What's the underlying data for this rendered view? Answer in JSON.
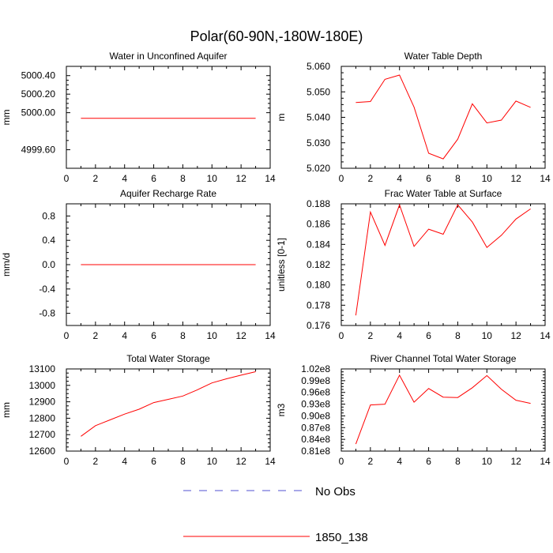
{
  "page_title": "Polar(60-90N,-180W-180E)",
  "colors": {
    "model_line": "#ff0000",
    "obs_line": "#5050d0",
    "axis": "#000000"
  },
  "legend": [
    {
      "label": "No Obs",
      "style": "dashed",
      "color": "#5050d0"
    },
    {
      "label": "1850_138",
      "style": "solid",
      "color": "#ff0000"
    }
  ],
  "chart_data": [
    {
      "type": "line",
      "title": "Water in Unconfined Aquifer",
      "xlabel": "",
      "ylabel": "mm",
      "xlim": [
        0,
        14
      ],
      "ylim": [
        4999.4,
        5000.5
      ],
      "xticks": [
        0,
        2,
        4,
        6,
        8,
        10,
        12,
        14
      ],
      "yticks": [
        4999.6,
        5000.0,
        5000.2,
        5000.4
      ],
      "ytick_labels": [
        "4999.60",
        "5000.00",
        "5000.20",
        "5000.40"
      ],
      "series": [
        {
          "name": "1850_138",
          "x": [
            1,
            2,
            3,
            4,
            5,
            6,
            7,
            8,
            9,
            10,
            11,
            12,
            13
          ],
          "values": [
            4999.94,
            4999.94,
            4999.94,
            4999.94,
            4999.94,
            4999.94,
            4999.94,
            4999.94,
            4999.94,
            4999.94,
            4999.94,
            4999.94,
            4999.94
          ]
        }
      ]
    },
    {
      "type": "line",
      "title": "Water Table Depth",
      "xlabel": "",
      "ylabel": "m",
      "xlim": [
        0,
        14
      ],
      "ylim": [
        5.02,
        5.06
      ],
      "xticks": [
        0,
        2,
        4,
        6,
        8,
        10,
        12,
        14
      ],
      "yticks": [
        5.02,
        5.03,
        5.04,
        5.05,
        5.06
      ],
      "ytick_labels": [
        "5.020",
        "5.030",
        "5.040",
        "5.050",
        "5.060"
      ],
      "series": [
        {
          "name": "1850_138",
          "x": [
            1,
            2,
            3,
            4,
            5,
            6,
            7,
            8,
            9,
            10,
            11,
            12,
            13
          ],
          "values": [
            5.0458,
            5.0462,
            5.0549,
            5.0566,
            5.044,
            5.0259,
            5.0237,
            5.0314,
            5.0453,
            5.0378,
            5.0389,
            5.0464,
            5.0439
          ]
        }
      ]
    },
    {
      "type": "line",
      "title": "Aquifer Recharge Rate",
      "xlabel": "",
      "ylabel": "mm/d",
      "xlim": [
        0,
        14
      ],
      "ylim": [
        -1.0,
        1.0
      ],
      "xticks": [
        0,
        2,
        4,
        6,
        8,
        10,
        12,
        14
      ],
      "yticks": [
        -0.8,
        -0.4,
        0.0,
        0.4,
        0.8
      ],
      "ytick_labels": [
        "-0.8",
        "-0.4",
        "0.0",
        "0.4",
        "0.8"
      ],
      "series": [
        {
          "name": "1850_138",
          "x": [
            1,
            2,
            3,
            4,
            5,
            6,
            7,
            8,
            9,
            10,
            11,
            12,
            13
          ],
          "values": [
            0,
            0,
            0,
            0,
            0,
            0,
            0,
            0,
            0,
            0,
            0,
            0,
            0
          ]
        }
      ]
    },
    {
      "type": "line",
      "title": "Frac Water Table at Surface",
      "xlabel": "",
      "ylabel": "unitless [0-1]",
      "xlim": [
        0,
        14
      ],
      "ylim": [
        0.176,
        0.188
      ],
      "xticks": [
        0,
        2,
        4,
        6,
        8,
        10,
        12,
        14
      ],
      "yticks": [
        0.176,
        0.178,
        0.18,
        0.182,
        0.184,
        0.186,
        0.188
      ],
      "ytick_labels": [
        "0.176",
        "0.178",
        "0.180",
        "0.182",
        "0.184",
        "0.186",
        "0.188"
      ],
      "series": [
        {
          "name": "1850_138",
          "x": [
            1,
            2,
            3,
            4,
            5,
            6,
            7,
            8,
            9,
            10,
            11,
            12,
            13
          ],
          "values": [
            0.177,
            0.1872,
            0.1839,
            0.1879,
            0.1838,
            0.1855,
            0.185,
            0.1879,
            0.1862,
            0.1837,
            0.1849,
            0.1865,
            0.1875
          ]
        }
      ]
    },
    {
      "type": "line",
      "title": "Total Water Storage",
      "xlabel": "",
      "ylabel": "mm",
      "xlim": [
        0,
        14
      ],
      "ylim": [
        12600,
        13100
      ],
      "xticks": [
        0,
        2,
        4,
        6,
        8,
        10,
        12,
        14
      ],
      "yticks": [
        12600,
        12700,
        12800,
        12900,
        13000,
        13100
      ],
      "ytick_labels": [
        "12600",
        "12700",
        "12800",
        "12900",
        "13000",
        "13100"
      ],
      "series": [
        {
          "name": "1850_138",
          "x": [
            1,
            2,
            3,
            4,
            5,
            6,
            7,
            8,
            9,
            10,
            11,
            12,
            13
          ],
          "values": [
            12690,
            12755,
            12790,
            12825,
            12855,
            12895,
            12915,
            12935,
            12973,
            13015,
            13040,
            13062,
            13083
          ]
        }
      ]
    },
    {
      "type": "line",
      "title": "River Channel Total Water Storage",
      "xlabel": "",
      "ylabel": "m3",
      "xlim": [
        0,
        14
      ],
      "ylim": [
        81000000,
        102000000
      ],
      "xticks": [
        0,
        2,
        4,
        6,
        8,
        10,
        12,
        14
      ],
      "yticks": [
        81000000,
        84000000,
        87000000,
        90000000,
        93000000,
        96000000,
        99000000,
        102000000
      ],
      "ytick_labels": [
        "0.81e8",
        "0.84e8",
        "0.87e8",
        "0.90e8",
        "0.93e8",
        "0.96e8",
        "0.99e8",
        "1.02e8"
      ],
      "series": [
        {
          "name": "1850_138",
          "x": [
            1,
            2,
            3,
            4,
            5,
            6,
            7,
            8,
            9,
            10,
            11,
            12,
            13
          ],
          "values": [
            82800000,
            92800000,
            93000000,
            100400000,
            93500000,
            97000000,
            94800000,
            94700000,
            97200000,
            100300000,
            96800000,
            94000000,
            93200000
          ]
        }
      ]
    }
  ]
}
